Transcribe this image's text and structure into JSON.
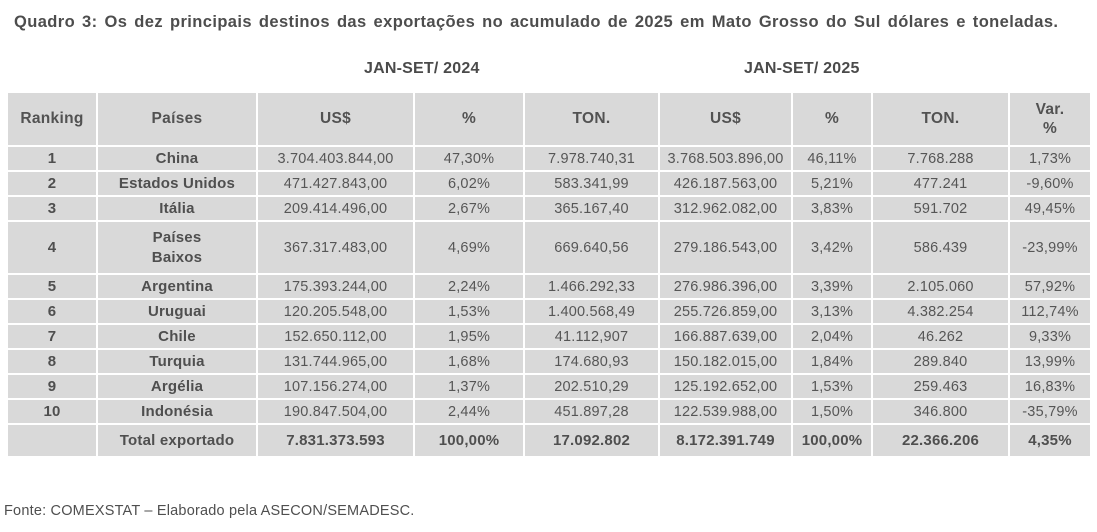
{
  "title": "Quadro 3: Os dez principais destinos das exportações no acumulado de 2025 em Mato Grosso do Sul dólares e toneladas.",
  "period_labels": {
    "left": "JAN-SET/ 2024",
    "right": "JAN-SET/ 2025"
  },
  "table": {
    "headers": [
      "Ranking",
      "Países",
      "US$",
      "%",
      "TON.",
      "US$",
      "%",
      "TON.",
      "Var.\n%"
    ],
    "rows": [
      {
        "ranking": "1",
        "country": "China",
        "values": [
          "3.704.403.844,00",
          "47,30%",
          "7.978.740,31",
          "3.768.503.896,00",
          "46,11%",
          "7.768.288",
          "1,73%"
        ]
      },
      {
        "ranking": "2",
        "country": "Estados Unidos",
        "values": [
          "471.427.843,00",
          "6,02%",
          "583.341,99",
          "426.187.563,00",
          "5,21%",
          "477.241",
          "-9,60%"
        ]
      },
      {
        "ranking": "3",
        "country": "Itália",
        "values": [
          "209.414.496,00",
          "2,67%",
          "365.167,40",
          "312.962.082,00",
          "3,83%",
          "591.702",
          "49,45%"
        ]
      },
      {
        "ranking": "4",
        "country": "Países\nBaixos",
        "values": [
          "367.317.483,00",
          "4,69%",
          "669.640,56",
          "279.186.543,00",
          "3,42%",
          "586.439",
          "-23,99%"
        ]
      },
      {
        "ranking": "5",
        "country": "Argentina",
        "values": [
          "175.393.244,00",
          "2,24%",
          "1.466.292,33",
          "276.986.396,00",
          "3,39%",
          "2.105.060",
          "57,92%"
        ]
      },
      {
        "ranking": "6",
        "country": "Uruguai",
        "values": [
          "120.205.548,00",
          "1,53%",
          "1.400.568,49",
          "255.726.859,00",
          "3,13%",
          "4.382.254",
          "112,74%"
        ]
      },
      {
        "ranking": "7",
        "country": "Chile",
        "values": [
          "152.650.112,00",
          "1,95%",
          "41.112,907",
          "166.887.639,00",
          "2,04%",
          "46.262",
          "9,33%"
        ]
      },
      {
        "ranking": "8",
        "country": "Turquia",
        "values": [
          "131.744.965,00",
          "1,68%",
          "174.680,93",
          "150.182.015,00",
          "1,84%",
          "289.840",
          "13,99%"
        ]
      },
      {
        "ranking": "9",
        "country": "Argélia",
        "values": [
          "107.156.274,00",
          "1,37%",
          "202.510,29",
          "125.192.652,00",
          "1,53%",
          "259.463",
          "16,83%"
        ]
      },
      {
        "ranking": "10",
        "country": "Indonésia",
        "values": [
          "190.847.504,00",
          "2,44%",
          "451.897,28",
          "122.539.988,00",
          "1,50%",
          "346.800",
          "-35,79%"
        ]
      }
    ],
    "total": {
      "ranking": "",
      "label": "Total exportado",
      "values": [
        "7.831.373.593",
        "100,00%",
        "17.092.802",
        "8.172.391.749",
        "100,00%",
        "22.366.206",
        "4,35%"
      ]
    }
  },
  "footer": {
    "source": "Fonte: COMEXSTAT – Elaborado pela ASECON/SEMADESC."
  },
  "colors": {
    "cell_bg": "#d9d9d9",
    "grid": "#ffffff",
    "text": "#565656"
  }
}
